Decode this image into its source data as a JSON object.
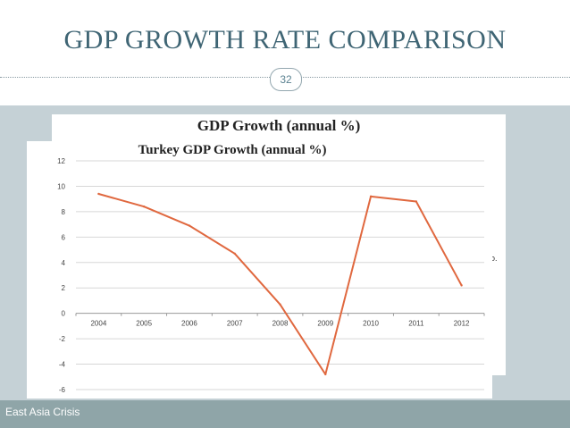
{
  "slide": {
    "title": "GDP GROWTH RATE COMPARISON",
    "page_number": "32",
    "footer": "East Asia Crisis"
  },
  "back_chart": {
    "title": "GDP Growth (annual %)",
    "clipped_text": "o."
  },
  "chart_data": {
    "type": "line",
    "title": "Turkey GDP Growth (annual %)",
    "xlabel": "",
    "ylabel": "",
    "x": [
      "2004",
      "2005",
      "2006",
      "2007",
      "2008",
      "2009",
      "2010",
      "2011",
      "2012"
    ],
    "series": [
      {
        "values": [
          9.4,
          8.4,
          6.9,
          4.7,
          0.7,
          -4.8,
          9.2,
          8.8,
          2.2
        ]
      }
    ],
    "yticks": [
      "12",
      "10",
      "8",
      "6",
      "4",
      "2",
      "0",
      "-2",
      "-4",
      "-6"
    ],
    "ylim": [
      -6,
      12
    ],
    "grid": true,
    "legend": "none",
    "line_color": "#e0683f"
  }
}
